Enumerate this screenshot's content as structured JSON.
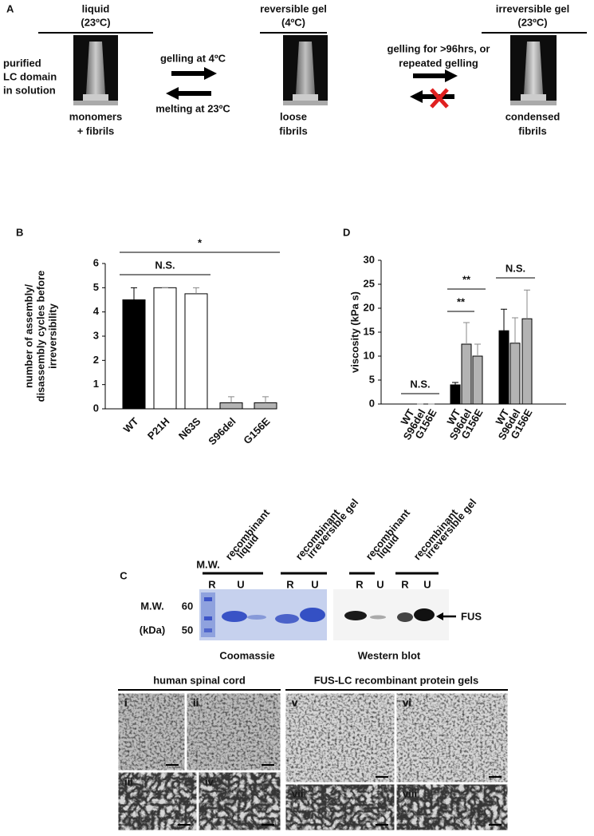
{
  "panel_a": {
    "letter": "A",
    "stages": [
      {
        "title": "liquid",
        "temp": "(23ºC)",
        "caption": [
          "monomers",
          "+ fibrils"
        ]
      },
      {
        "title": "reversible gel",
        "temp": "(4ºC)",
        "caption": [
          "loose",
          "fibrils"
        ]
      },
      {
        "title": "irreversible gel",
        "temp": "(23ºC)",
        "caption": [
          "condensed",
          "fibrils"
        ]
      }
    ],
    "side_label": [
      "purified",
      "LC domain",
      "in solution"
    ],
    "transitions": [
      {
        "top": [
          "gelling at 4ºC"
        ],
        "bottom": [
          "melting at 23ºC"
        ]
      },
      {
        "top": [
          "gelling for >96hrs, or",
          "repeated gelling"
        ],
        "bottom": []
      }
    ]
  },
  "chart_data": [
    {
      "type": "bar",
      "panel": "B",
      "ylabel": [
        "number of assembly/",
        "disassembly cycles before",
        "irreversibility"
      ],
      "categories": [
        "WT",
        "P21H",
        "N63S",
        "S96del",
        "G156E"
      ],
      "values": [
        4.5,
        5,
        4.75,
        0.25,
        0.25
      ],
      "errors": [
        0.5,
        0,
        0.25,
        0.25,
        0.25
      ],
      "colors": [
        "#000000",
        "#ffffff",
        "#ffffff",
        "#b3b3b3",
        "#b3b3b3"
      ],
      "ylim": [
        0,
        6
      ],
      "yticks": [
        0,
        1,
        2,
        3,
        4,
        5,
        6
      ],
      "annotations": [
        {
          "text": "N.S.",
          "from": 0,
          "to": 2
        },
        {
          "text": "*",
          "from": 0,
          "to": 4
        }
      ]
    },
    {
      "type": "bar",
      "panel": "D",
      "ylabel": [
        "viscosity  (kPa s)"
      ],
      "categories": [
        "WT",
        "S96del",
        "G156E",
        "WT",
        "S96del",
        "G156E",
        "WT",
        "S96del",
        "G156E"
      ],
      "values": [
        0,
        0,
        0,
        4,
        12.5,
        10,
        15.3,
        12.7,
        17.8
      ],
      "errors": [
        0,
        0,
        0,
        0.5,
        4.5,
        2.5,
        4.5,
        5.3,
        6
      ],
      "colors": [
        "#000000",
        "#b3b3b3",
        "#b3b3b3",
        "#000000",
        "#b3b3b3",
        "#b3b3b3",
        "#000000",
        "#b3b3b3",
        "#b3b3b3"
      ],
      "ylim": [
        0,
        30
      ],
      "yticks": [
        0,
        5,
        10,
        15,
        20,
        25,
        30
      ],
      "annotations": [
        {
          "text": "N.S.",
          "from": 0,
          "to": 2
        },
        {
          "text": "**",
          "from": 3,
          "to": 5
        },
        {
          "text": "**",
          "from": 3,
          "to": 4
        },
        {
          "text": "N.S.",
          "from": 6,
          "to": 8
        }
      ]
    }
  ],
  "panel_c": {
    "letter": "C",
    "marker_lane": "M.W.",
    "lanes": [
      [
        "recombinant",
        "liquid"
      ],
      [
        "recombinant",
        "irreversible gel"
      ],
      [
        "recombinant",
        "liquid"
      ],
      [
        "recombinant",
        "irreversible gel"
      ]
    ],
    "lane_letters": [
      "R",
      "U",
      "R",
      "U",
      "R",
      "U",
      "R",
      "U"
    ],
    "mw_label": [
      "M.W.",
      "(kDa)"
    ],
    "mw_ticks": [
      "60",
      "50"
    ],
    "band_label": "FUS",
    "blots": [
      "Coomassie",
      "Western blot"
    ]
  },
  "micrographs": {
    "groups": [
      "human spinal cord",
      "FUS-LC  recombinant protein gels"
    ],
    "labels": [
      "i",
      "ii",
      "iii",
      "iv",
      "v",
      "vi",
      "vii",
      "viii"
    ]
  }
}
